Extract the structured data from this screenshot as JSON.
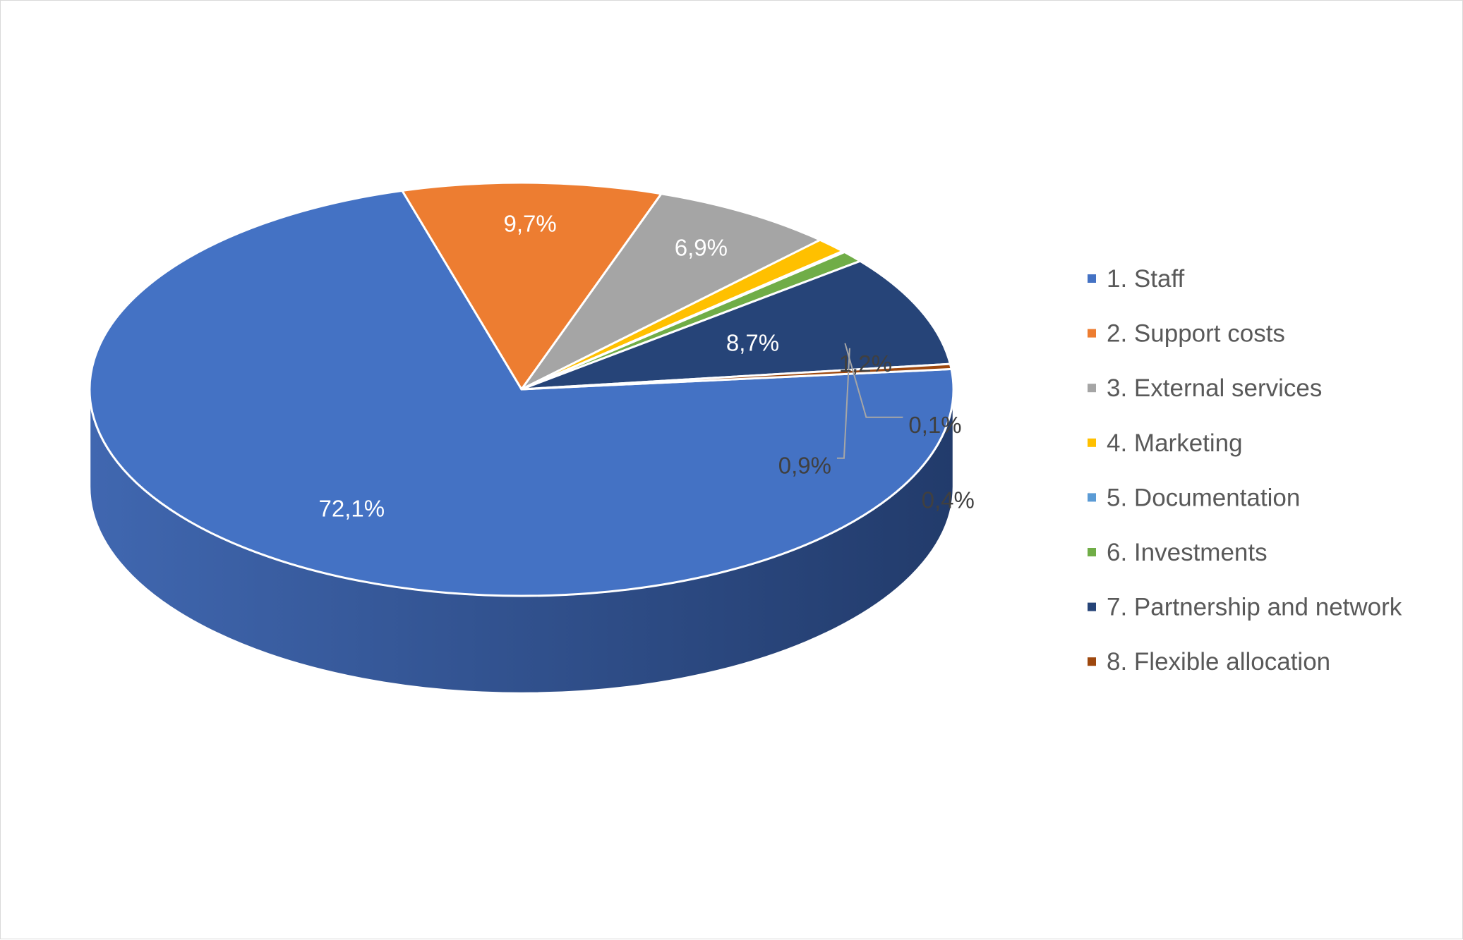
{
  "chart_data": {
    "type": "pie",
    "style": "3d",
    "title": "",
    "legend_position": "right",
    "categories": [
      "1. Staff",
      "2. Support costs",
      "3. External services",
      "4. Marketing",
      "5. Documentation",
      "6. Investments",
      "7. Partnership and network",
      "8. Flexible allocation"
    ],
    "values": [
      72.1,
      9.7,
      6.9,
      1.2,
      0.1,
      0.9,
      8.7,
      0.4
    ],
    "labels": [
      "72,1%",
      "9,7%",
      "6,9%",
      "1,2%",
      "0,1%",
      "0,9%",
      "8,7%",
      "0,4%"
    ],
    "colors": [
      "#4472c4",
      "#ed7d31",
      "#a5a5a5",
      "#ffc000",
      "#5b9bd5",
      "#70ad47",
      "#264478",
      "#9e480e"
    ]
  }
}
